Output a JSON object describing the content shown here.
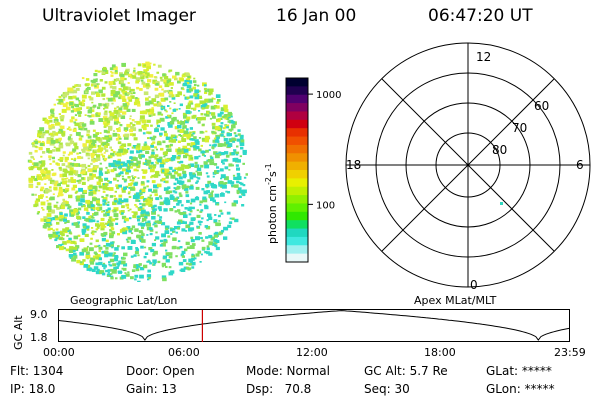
{
  "header": {
    "title": "Ultraviolet Imager",
    "date": "16 Jan 00",
    "time": "06:47:20 UT"
  },
  "image": {
    "palette": [
      "#2fd8c8",
      "#7fe060",
      "#b0e838",
      "#d8f030",
      "#f0f040",
      "#c8e870"
    ]
  },
  "colorbar": {
    "unit_label": "photon cm",
    "unit_sup1": "-2",
    "unit_mid": "s",
    "unit_sup2": "-1",
    "ticks": [
      {
        "value": 1000,
        "label": "1000"
      },
      {
        "value": 100,
        "label": "100"
      }
    ],
    "colors": [
      "#000030",
      "#200050",
      "#500070",
      "#800060",
      "#b00040",
      "#d00010",
      "#e83000",
      "#f05000",
      "#f07000",
      "#f09000",
      "#f0b000",
      "#f0d000",
      "#e8f000",
      "#c0f000",
      "#90f000",
      "#60f000",
      "#30e800",
      "#10e060",
      "#20d8c0",
      "#40e8e0",
      "#a0f0f0",
      "#e8f8f8"
    ]
  },
  "polar": {
    "ring_labels": [
      "60",
      "70",
      "80"
    ],
    "clock_labels": {
      "top": "12",
      "right": "6",
      "bottom": "0",
      "left": "18"
    }
  },
  "track": {
    "left_label": "Geographic Lat/Lon",
    "right_label": "Apex MLat/MLT",
    "axis_label": "GC Alt",
    "y_ticks": [
      "9.0",
      "1.8"
    ],
    "x_ticks": [
      "00:00",
      "06:00",
      "12:00",
      "18:00",
      "23:59"
    ],
    "current_time": "06:47",
    "marker_color": "#cc0000"
  },
  "info": {
    "row1": [
      {
        "label": "Flt: 1304"
      },
      {
        "label": "Door: Open"
      },
      {
        "label": "Mode: Normal"
      },
      {
        "label": "GC Alt: 5.7 Re"
      },
      {
        "label": "GLat: *****"
      }
    ],
    "row2": [
      {
        "label": "IP: 18.0"
      },
      {
        "label": "Gain: 13"
      },
      {
        "label": "Dsp:   70.8"
      },
      {
        "label": "Seq: 30"
      },
      {
        "label": "GLon: *****"
      }
    ]
  }
}
